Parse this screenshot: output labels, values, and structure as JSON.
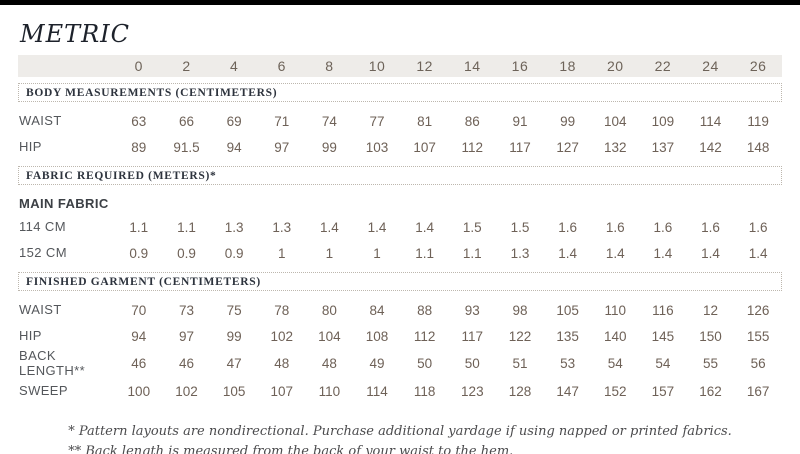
{
  "title": "METRIC",
  "colors": {
    "top_bar": "#000000",
    "header_band": "#eeece9",
    "number_text": "#6e6157",
    "label_text": "#54575b",
    "section_text": "#2d333d",
    "title_text": "#1d222b",
    "dotted_border": "#bdb7ae"
  },
  "chart_data": {
    "type": "table",
    "title": "METRIC",
    "columns": [
      "0",
      "2",
      "4",
      "6",
      "8",
      "10",
      "12",
      "14",
      "16",
      "18",
      "20",
      "22",
      "24",
      "26"
    ],
    "sections": [
      {
        "heading": "BODY MEASUREMENTS (CENTIMETERS)",
        "rows": [
          {
            "label": "WAIST",
            "values": [
              "63",
              "66",
              "69",
              "71",
              "74",
              "77",
              "81",
              "86",
              "91",
              "99",
              "104",
              "109",
              "114",
              "119"
            ]
          },
          {
            "label": "HIP",
            "values": [
              "89",
              "91.5",
              "94",
              "97",
              "99",
              "103",
              "107",
              "112",
              "117",
              "127",
              "132",
              "137",
              "142",
              "148"
            ]
          }
        ]
      },
      {
        "heading": "FABRIC REQUIRED (METERS)*",
        "subheading": "MAIN FABRIC",
        "rows": [
          {
            "label": "114 CM",
            "values": [
              "1.1",
              "1.1",
              "1.3",
              "1.3",
              "1.4",
              "1.4",
              "1.4",
              "1.5",
              "1.5",
              "1.6",
              "1.6",
              "1.6",
              "1.6",
              "1.6"
            ]
          },
          {
            "label": "152 CM",
            "values": [
              "0.9",
              "0.9",
              "0.9",
              "1",
              "1",
              "1",
              "1.1",
              "1.1",
              "1.3",
              "1.4",
              "1.4",
              "1.4",
              "1.4",
              "1.4"
            ]
          }
        ]
      },
      {
        "heading": "FINISHED GARMENT (CENTIMETERS)",
        "rows": [
          {
            "label": "WAIST",
            "values": [
              "70",
              "73",
              "75",
              "78",
              "80",
              "84",
              "88",
              "93",
              "98",
              "105",
              "110",
              "116",
              "12",
              "126"
            ]
          },
          {
            "label": "HIP",
            "values": [
              "94",
              "97",
              "99",
              "102",
              "104",
              "108",
              "112",
              "117",
              "122",
              "135",
              "140",
              "145",
              "150",
              "155"
            ]
          },
          {
            "label": "BACK LENGTH**",
            "values": [
              "46",
              "46",
              "47",
              "48",
              "48",
              "49",
              "50",
              "50",
              "51",
              "53",
              "54",
              "54",
              "55",
              "56"
            ]
          },
          {
            "label": "SWEEP",
            "values": [
              "100",
              "102",
              "105",
              "107",
              "110",
              "114",
              "118",
              "123",
              "128",
              "147",
              "152",
              "157",
              "162",
              "167"
            ]
          }
        ]
      }
    ]
  },
  "footnotes": [
    "* Pattern layouts are nondirectional. Purchase additional yardage if using napped or printed fabrics.",
    "** Back length is measured from the back of your waist to the hem."
  ]
}
